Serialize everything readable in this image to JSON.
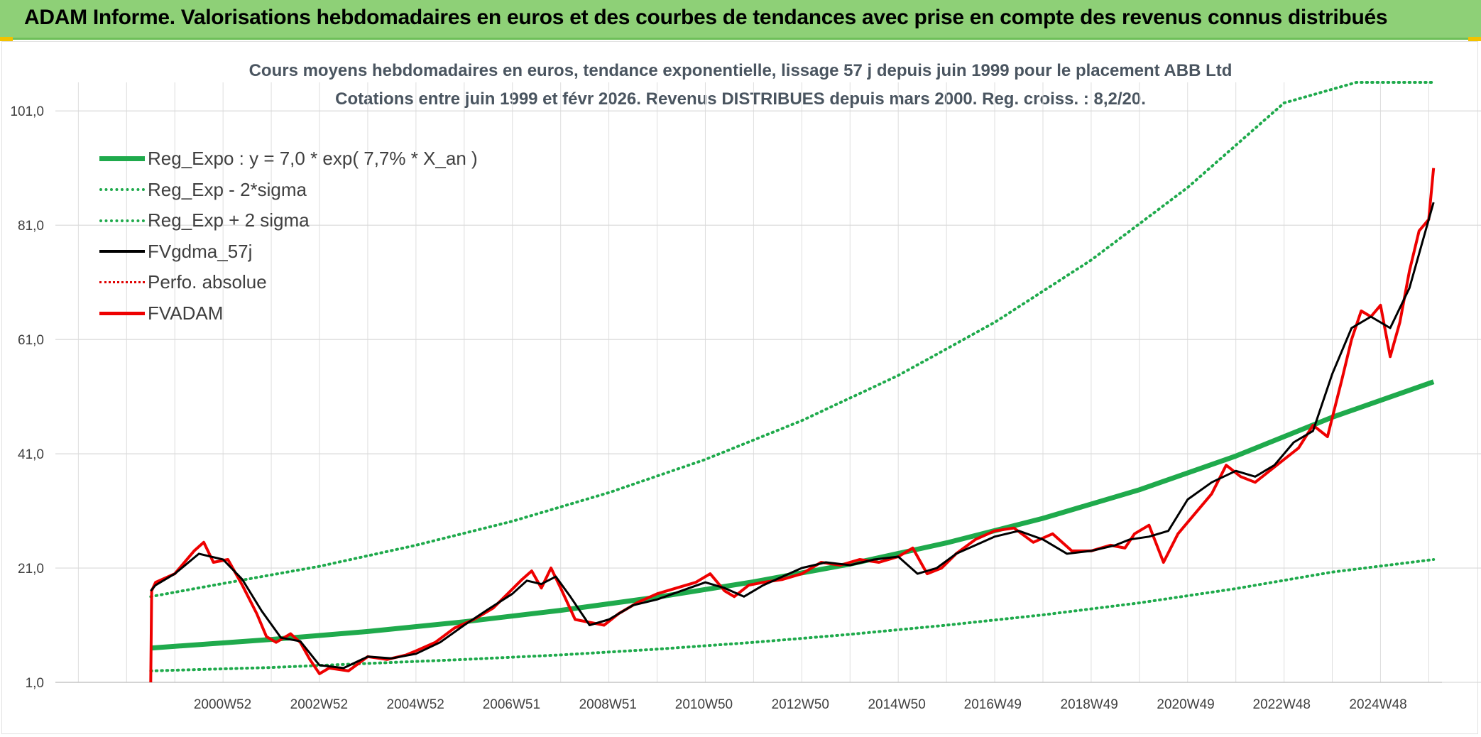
{
  "header": {
    "title": "ADAM Informe. Valorisations hebdomadaires en euros et des courbes de tendances avec prise en compte des revenus connus distribués"
  },
  "colors": {
    "banner": "#8ed077",
    "regression": "#1faa4c",
    "fvadam": "#ee0000",
    "smoothed": "#000000",
    "perfo": "#e00000"
  },
  "chart_data": {
    "type": "line",
    "title": "Cours moyens hebdomadaires en euros, tendance exponentielle, lissage 57 j depuis juin 1999 pour le placement ABB Ltd",
    "subtitle": "Cotations entre juin 1999 et févr 2026. Revenus DISTRIBUES depuis mars 2000. Reg. croiss. : 8,2/20.",
    "xlabel": "",
    "ylabel": "",
    "ylim": [
      1,
      106
    ],
    "x_range": [
      1997.7,
      2026.2
    ],
    "ytick_labels": [
      "1,0",
      "21,0",
      "41,0",
      "61,0",
      "81,0",
      "101,0"
    ],
    "ytick_values": [
      1,
      21,
      41,
      61,
      81,
      101
    ],
    "xtick_labels": [
      "2000W52",
      "2002W52",
      "2004W52",
      "2006W51",
      "2008W51",
      "2010W50",
      "2012W50",
      "2014W50",
      "2016W49",
      "2018W49",
      "2020W49",
      "2022W48",
      "2024W48"
    ],
    "xtick_values": [
      2000.99,
      2002.99,
      2004.99,
      2006.98,
      2008.98,
      2010.97,
      2012.97,
      2014.97,
      2016.96,
      2018.96,
      2020.96,
      2022.95,
      2024.95
    ],
    "grid": true,
    "legend_position": "top-left",
    "series": [
      {
        "name": "Reg_Expo : y = 7,0 * exp( 7,7% *  X_an )",
        "style": "solid-thick",
        "color": "#1faa4c",
        "x": [
          1999.5,
          2002.0,
          2004.0,
          2006.0,
          2008.0,
          2010.0,
          2012.0,
          2014.0,
          2016.0,
          2018.0,
          2020.0,
          2022.0,
          2024.0,
          2026.1
        ],
        "y": [
          7.0,
          8.5,
          9.9,
          11.6,
          13.6,
          15.9,
          18.6,
          21.7,
          25.4,
          29.7,
          34.7,
          40.6,
          47.4,
          53.6
        ]
      },
      {
        "name": "Reg_Exp - 2*sigma",
        "style": "dotted",
        "color": "#1faa4c",
        "x": [
          1999.5,
          2002.0,
          2004.0,
          2006.0,
          2008.0,
          2010.0,
          2012.0,
          2014.0,
          2016.0,
          2018.0,
          2020.0,
          2022.0,
          2024.0,
          2026.1
        ],
        "y": [
          3.0,
          3.6,
          4.3,
          5.0,
          5.8,
          6.8,
          8.0,
          9.4,
          11.0,
          12.8,
          14.9,
          17.4,
          20.3,
          22.5
        ]
      },
      {
        "name": "Reg_Exp + 2 sigma",
        "style": "dotted",
        "color": "#1faa4c",
        "x": [
          1999.5,
          2001.0,
          2003.0,
          2005.0,
          2007.0,
          2009.0,
          2011.0,
          2013.0,
          2015.0,
          2017.0,
          2019.0,
          2021.0,
          2023.0,
          2024.5,
          2025.5,
          2026.1
        ],
        "y": [
          16.0,
          18.3,
          21.3,
          25.0,
          29.2,
          34.2,
          40.0,
          46.8,
          54.7,
          64.0,
          74.9,
          87.6,
          102.4,
          106.0,
          106.0,
          106.0
        ]
      },
      {
        "name": "FVgdma_57j",
        "style": "solid",
        "color": "#000000",
        "x": [
          1999.5,
          1999.6,
          2000.0,
          2000.5,
          2001.0,
          2001.4,
          2001.8,
          2002.2,
          2002.6,
          2003.0,
          2003.5,
          2004.0,
          2004.5,
          2005.0,
          2005.5,
          2006.0,
          2006.5,
          2007.0,
          2007.3,
          2007.6,
          2007.9,
          2008.2,
          2008.6,
          2009.0,
          2009.5,
          2010.0,
          2010.5,
          2011.0,
          2011.4,
          2011.8,
          2012.2,
          2012.6,
          2013.0,
          2013.5,
          2014.0,
          2014.5,
          2015.0,
          2015.4,
          2015.8,
          2016.2,
          2016.6,
          2017.0,
          2017.5,
          2018.0,
          2018.5,
          2019.0,
          2019.5,
          2019.8,
          2020.2,
          2020.6,
          2021.0,
          2021.5,
          2022.0,
          2022.4,
          2022.8,
          2023.2,
          2023.6,
          2024.0,
          2024.4,
          2024.8,
          2025.2,
          2025.6,
          2026.1
        ],
        "y": [
          17.0,
          18.0,
          20.0,
          23.5,
          22.5,
          19.0,
          13.5,
          8.8,
          8.2,
          4.0,
          3.5,
          5.5,
          5.2,
          6.0,
          8.0,
          11.0,
          13.8,
          16.5,
          18.8,
          18.2,
          19.5,
          16.0,
          11.0,
          12.0,
          14.5,
          15.5,
          17.0,
          18.5,
          17.5,
          16.0,
          18.0,
          19.5,
          21.0,
          22.0,
          21.5,
          22.5,
          23.0,
          20.0,
          21.0,
          23.5,
          25.0,
          26.5,
          27.5,
          26.0,
          23.5,
          24.0,
          25.0,
          26.0,
          26.5,
          27.5,
          33.0,
          36.0,
          38.0,
          37.0,
          39.0,
          43.0,
          45.0,
          55.0,
          63.0,
          65.0,
          63.0,
          70.0,
          85.0
        ]
      },
      {
        "name": "Perfo. absolue",
        "style": "dotted",
        "color": "#e00000",
        "x": [],
        "y": []
      },
      {
        "name": "FVADAM",
        "style": "solid-red",
        "color": "#ee0000",
        "x": [
          1999.5,
          1999.52,
          1999.6,
          2000.0,
          2000.4,
          2000.6,
          2000.8,
          2001.1,
          2001.4,
          2001.7,
          2001.9,
          2002.1,
          2002.4,
          2002.6,
          2002.8,
          2003.0,
          2003.2,
          2003.6,
          2004.0,
          2004.4,
          2004.8,
          2005.0,
          2005.4,
          2005.8,
          2006.2,
          2006.6,
          2006.9,
          2007.2,
          2007.4,
          2007.6,
          2007.8,
          2008.0,
          2008.3,
          2008.6,
          2008.9,
          2009.2,
          2009.6,
          2010.0,
          2010.4,
          2010.8,
          2011.1,
          2011.4,
          2011.6,
          2011.9,
          2012.2,
          2012.6,
          2013.0,
          2013.4,
          2013.8,
          2014.2,
          2014.6,
          2015.0,
          2015.3,
          2015.6,
          2015.9,
          2016.2,
          2016.6,
          2017.0,
          2017.4,
          2017.8,
          2018.2,
          2018.6,
          2019.0,
          2019.4,
          2019.7,
          2019.9,
          2020.2,
          2020.5,
          2020.8,
          2021.1,
          2021.5,
          2021.8,
          2022.1,
          2022.4,
          2022.7,
          2023.0,
          2023.3,
          2023.6,
          2023.9,
          2024.2,
          2024.4,
          2024.6,
          2024.8,
          2025.0,
          2025.2,
          2025.4,
          2025.6,
          2025.8,
          2026.0,
          2026.1
        ],
        "y": [
          1.0,
          17.0,
          18.5,
          20.0,
          24.0,
          25.5,
          22.0,
          22.5,
          18.0,
          13.0,
          9.0,
          8.0,
          9.5,
          8.0,
          5.0,
          2.5,
          3.5,
          3.0,
          5.5,
          5.0,
          5.8,
          6.5,
          8.0,
          10.5,
          12.0,
          14.0,
          16.5,
          19.0,
          20.5,
          17.5,
          21.0,
          17.5,
          12.0,
          11.5,
          11.0,
          13.0,
          15.0,
          16.5,
          17.5,
          18.5,
          20.0,
          17.0,
          16.0,
          18.0,
          18.5,
          19.0,
          20.0,
          22.0,
          21.5,
          22.5,
          22.0,
          23.0,
          24.5,
          20.0,
          21.0,
          23.5,
          26.0,
          27.5,
          28.0,
          25.5,
          27.0,
          24.0,
          24.0,
          25.0,
          24.5,
          27.0,
          28.5,
          22.0,
          27.0,
          30.0,
          34.0,
          39.0,
          37.0,
          36.0,
          38.0,
          40.0,
          42.0,
          46.0,
          44.0,
          54.0,
          61.0,
          66.0,
          65.0,
          67.0,
          58.0,
          64.0,
          73.0,
          80.0,
          82.0,
          91.0
        ]
      }
    ]
  }
}
